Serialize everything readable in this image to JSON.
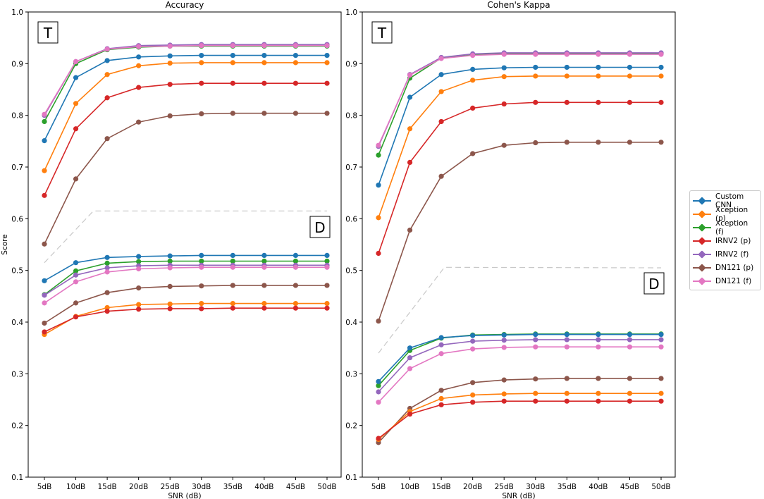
{
  "chart_data": [
    {
      "type": "line",
      "title": "Accuracy",
      "xlabel": "SNR (dB)",
      "ylabel": "Score",
      "ylim": [
        0.1,
        1.0
      ],
      "yticks": [
        "0.1",
        "0.2",
        "0.3",
        "0.4",
        "0.5",
        "0.6",
        "0.7",
        "0.8",
        "0.9",
        "1.0"
      ],
      "categories": [
        "5dB",
        "10dB",
        "15dB",
        "20dB",
        "25dB",
        "30dB",
        "35dB",
        "40dB",
        "45dB",
        "50dB"
      ],
      "annotations": {
        "top_box": "T",
        "bottom_box": "D",
        "divider": [
          [
            5,
            0.515
          ],
          [
            12.8,
            0.615
          ],
          [
            50,
            0.615
          ]
        ]
      },
      "series": [
        {
          "name": "Custom CNN",
          "color": "#1f77b4",
          "values": [
            0.751,
            0.873,
            0.906,
            0.913,
            0.915,
            0.916,
            0.916,
            0.916,
            0.916,
            0.916
          ]
        },
        {
          "name": "Xception (p)",
          "color": "#ff7f0e",
          "values": [
            0.693,
            0.823,
            0.879,
            0.896,
            0.901,
            0.902,
            0.902,
            0.902,
            0.902,
            0.902
          ]
        },
        {
          "name": "Xception (f)",
          "color": "#2ca02c",
          "values": [
            0.788,
            0.9,
            0.927,
            0.932,
            0.934,
            0.934,
            0.934,
            0.934,
            0.934,
            0.934
          ]
        },
        {
          "name": "IRNV2 (p)",
          "color": "#d62728",
          "values": [
            0.645,
            0.774,
            0.834,
            0.854,
            0.86,
            0.862,
            0.862,
            0.862,
            0.862,
            0.862
          ]
        },
        {
          "name": "IRNV2 (f)",
          "color": "#9467bd",
          "values": [
            0.8,
            0.904,
            0.929,
            0.935,
            0.936,
            0.937,
            0.937,
            0.937,
            0.937,
            0.937
          ]
        },
        {
          "name": "DN121 (p)",
          "color": "#8c564b",
          "values": [
            0.551,
            0.677,
            0.755,
            0.787,
            0.799,
            0.803,
            0.804,
            0.804,
            0.804,
            0.804
          ]
        },
        {
          "name": "DN121 (f)",
          "color": "#e377c2",
          "values": [
            0.802,
            0.904,
            0.928,
            0.933,
            0.934,
            0.935,
            0.935,
            0.935,
            0.935,
            0.935
          ]
        },
        {
          "name": "Custom CNN",
          "color": "#1f77b4",
          "values": [
            0.48,
            0.515,
            0.525,
            0.527,
            0.528,
            0.529,
            0.529,
            0.529,
            0.529,
            0.529
          ]
        },
        {
          "name": "Xception (f)",
          "color": "#2ca02c",
          "values": [
            0.453,
            0.499,
            0.514,
            0.517,
            0.518,
            0.518,
            0.518,
            0.518,
            0.518,
            0.518
          ]
        },
        {
          "name": "IRNV2 (f)",
          "color": "#9467bd",
          "values": [
            0.452,
            0.491,
            0.505,
            0.509,
            0.51,
            0.51,
            0.51,
            0.51,
            0.51,
            0.51
          ]
        },
        {
          "name": "DN121 (f)",
          "color": "#e377c2",
          "values": [
            0.437,
            0.478,
            0.497,
            0.503,
            0.505,
            0.506,
            0.506,
            0.506,
            0.506,
            0.506
          ]
        },
        {
          "name": "DN121 (p)",
          "color": "#8c564b",
          "values": [
            0.398,
            0.437,
            0.457,
            0.466,
            0.469,
            0.47,
            0.471,
            0.471,
            0.471,
            0.471
          ]
        },
        {
          "name": "Xception (p)",
          "color": "#ff7f0e",
          "values": [
            0.376,
            0.411,
            0.428,
            0.434,
            0.435,
            0.436,
            0.436,
            0.436,
            0.436,
            0.436
          ]
        },
        {
          "name": "IRNV2 (p)",
          "color": "#d62728",
          "values": [
            0.381,
            0.41,
            0.421,
            0.425,
            0.426,
            0.426,
            0.427,
            0.427,
            0.427,
            0.427
          ]
        }
      ]
    },
    {
      "type": "line",
      "title": "Cohen's Kappa",
      "xlabel": "SNR (dB)",
      "ylabel": "",
      "ylim": [
        0.1,
        1.0
      ],
      "yticks": [
        "0.1",
        "0.2",
        "0.3",
        "0.4",
        "0.5",
        "0.6",
        "0.7",
        "0.8",
        "0.9",
        "1.0"
      ],
      "categories": [
        "5dB",
        "10dB",
        "15dB",
        "20dB",
        "25dB",
        "30dB",
        "35dB",
        "40dB",
        "45dB",
        "50dB"
      ],
      "annotations": {
        "top_box": "T",
        "bottom_box": "D",
        "divider": [
          [
            5,
            0.34
          ],
          [
            15.5,
            0.506
          ],
          [
            50,
            0.505
          ]
        ]
      },
      "series": [
        {
          "name": "Custom CNN",
          "color": "#1f77b4",
          "values": [
            0.665,
            0.835,
            0.879,
            0.889,
            0.892,
            0.893,
            0.893,
            0.893,
            0.893,
            0.893
          ]
        },
        {
          "name": "Xception (p)",
          "color": "#ff7f0e",
          "values": [
            0.602,
            0.774,
            0.846,
            0.868,
            0.875,
            0.876,
            0.876,
            0.876,
            0.876,
            0.876
          ]
        },
        {
          "name": "Xception (f)",
          "color": "#2ca02c",
          "values": [
            0.723,
            0.872,
            0.911,
            0.917,
            0.919,
            0.92,
            0.92,
            0.92,
            0.92,
            0.92
          ]
        },
        {
          "name": "IRNV2 (p)",
          "color": "#d62728",
          "values": [
            0.533,
            0.709,
            0.788,
            0.814,
            0.822,
            0.825,
            0.825,
            0.825,
            0.825,
            0.825
          ]
        },
        {
          "name": "IRNV2 (f)",
          "color": "#9467bd",
          "values": [
            0.74,
            0.879,
            0.912,
            0.919,
            0.921,
            0.921,
            0.921,
            0.921,
            0.921,
            0.921
          ]
        },
        {
          "name": "DN121 (p)",
          "color": "#8c564b",
          "values": [
            0.402,
            0.578,
            0.682,
            0.726,
            0.742,
            0.747,
            0.748,
            0.748,
            0.748,
            0.748
          ]
        },
        {
          "name": "DN121 (f)",
          "color": "#e377c2",
          "values": [
            0.742,
            0.878,
            0.91,
            0.916,
            0.918,
            0.918,
            0.918,
            0.918,
            0.918,
            0.918
          ]
        },
        {
          "name": "Xception (f)",
          "color": "#2ca02c",
          "values": [
            0.277,
            0.345,
            0.369,
            0.375,
            0.376,
            0.377,
            0.377,
            0.377,
            0.377,
            0.377
          ]
        },
        {
          "name": "Custom CNN",
          "color": "#1f77b4",
          "values": [
            0.285,
            0.35,
            0.37,
            0.374,
            0.375,
            0.376,
            0.376,
            0.376,
            0.376,
            0.376
          ]
        },
        {
          "name": "IRNV2 (f)",
          "color": "#9467bd",
          "values": [
            0.265,
            0.331,
            0.356,
            0.363,
            0.365,
            0.366,
            0.366,
            0.366,
            0.366,
            0.366
          ]
        },
        {
          "name": "DN121 (f)",
          "color": "#e377c2",
          "values": [
            0.245,
            0.31,
            0.339,
            0.348,
            0.351,
            0.352,
            0.352,
            0.352,
            0.352,
            0.352
          ]
        },
        {
          "name": "DN121 (p)",
          "color": "#8c564b",
          "values": [
            0.167,
            0.233,
            0.268,
            0.283,
            0.288,
            0.29,
            0.291,
            0.291,
            0.291,
            0.291
          ]
        },
        {
          "name": "Xception (p)",
          "color": "#ff7f0e",
          "values": [
            0.173,
            0.227,
            0.252,
            0.259,
            0.261,
            0.262,
            0.262,
            0.262,
            0.262,
            0.262
          ]
        },
        {
          "name": "IRNV2 (p)",
          "color": "#d62728",
          "values": [
            0.175,
            0.222,
            0.24,
            0.245,
            0.247,
            0.247,
            0.247,
            0.247,
            0.247,
            0.247
          ]
        }
      ]
    }
  ],
  "legend": [
    {
      "label": "Custom CNN",
      "color": "#1f77b4"
    },
    {
      "label": "Xception (p)",
      "color": "#ff7f0e"
    },
    {
      "label": "Xception (f)",
      "color": "#2ca02c"
    },
    {
      "label": "IRNV2 (p)",
      "color": "#d62728"
    },
    {
      "label": "IRNV2 (f)",
      "color": "#9467bd"
    },
    {
      "label": "DN121 (p)",
      "color": "#8c564b"
    },
    {
      "label": "DN121 (f)",
      "color": "#e377c2"
    }
  ]
}
